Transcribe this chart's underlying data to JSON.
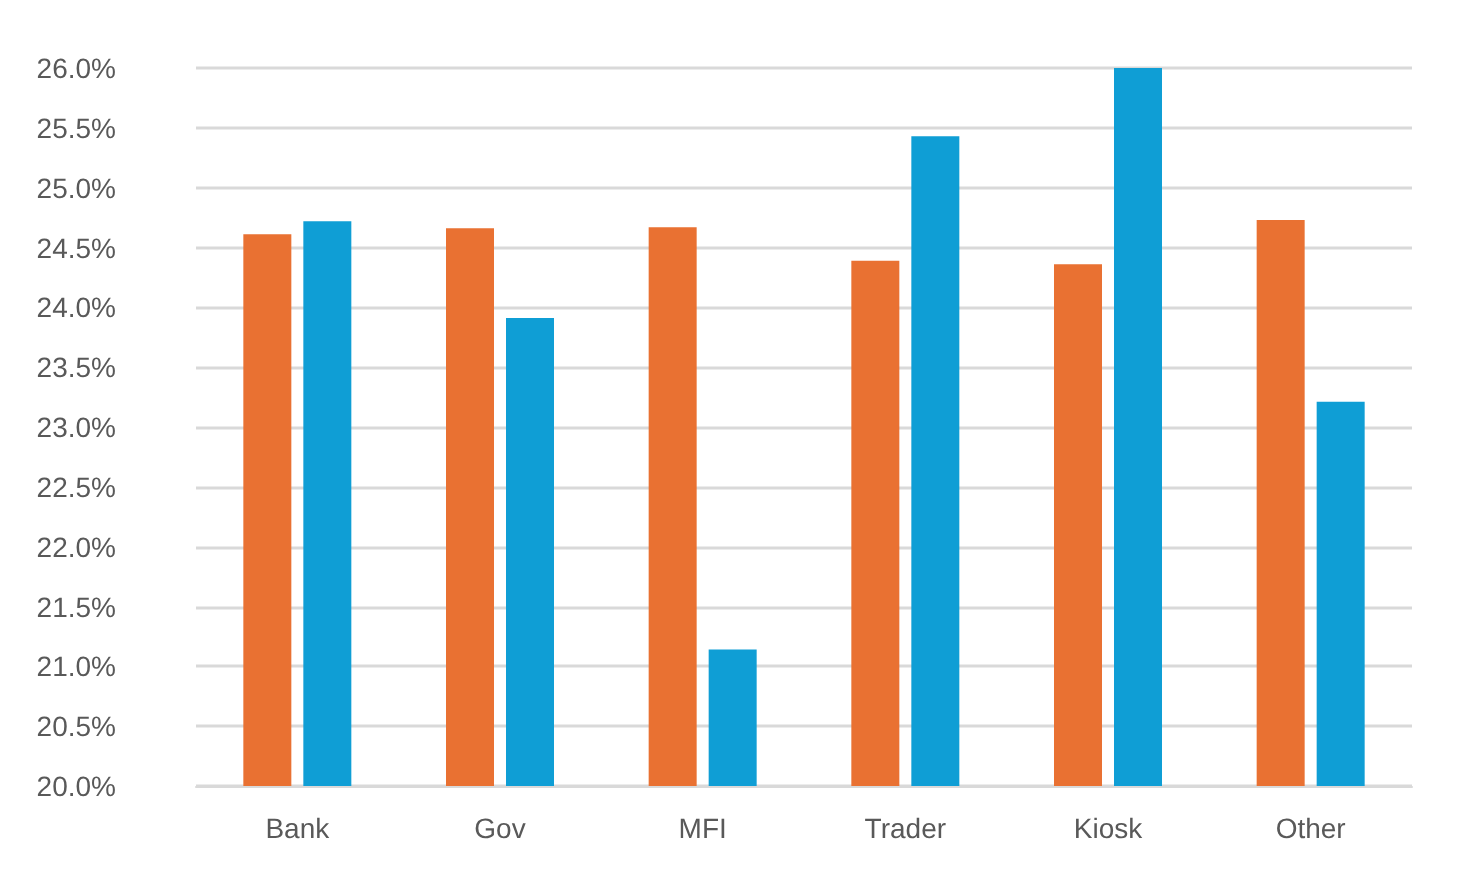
{
  "chart_data": {
    "type": "bar",
    "categories": [
      "Bank",
      "Gov",
      "MFI",
      "Trader",
      "Kiosk",
      "Other"
    ],
    "series": [
      {
        "color": "#e97132",
        "values": [
          24.61,
          24.66,
          24.67,
          24.39,
          24.36,
          24.73
        ]
      },
      {
        "color": "#0f9ed5",
        "values": [
          24.72,
          23.91,
          21.14,
          25.43,
          26.0,
          23.21
        ]
      }
    ],
    "ylim": [
      20,
      26
    ],
    "yticks": [
      {
        "value": 20,
        "label": "20.0%"
      },
      {
        "value": 20.5,
        "label": "20.5%"
      },
      {
        "value": 21,
        "label": "21.0%"
      },
      {
        "value": 21.5,
        "label": "21.5%"
      },
      {
        "value": 22,
        "label": "22.0%"
      },
      {
        "value": 22.5,
        "label": "22.5%"
      },
      {
        "value": 23,
        "label": "23.0%"
      },
      {
        "value": 23.5,
        "label": "23.5%"
      },
      {
        "value": 24,
        "label": "24.0%"
      },
      {
        "value": 24.5,
        "label": "24.5%"
      },
      {
        "value": 25,
        "label": "25.0%"
      },
      {
        "value": 25.5,
        "label": "25.5%"
      },
      {
        "value": 26,
        "label": "26.0%"
      }
    ],
    "grid": "y"
  }
}
